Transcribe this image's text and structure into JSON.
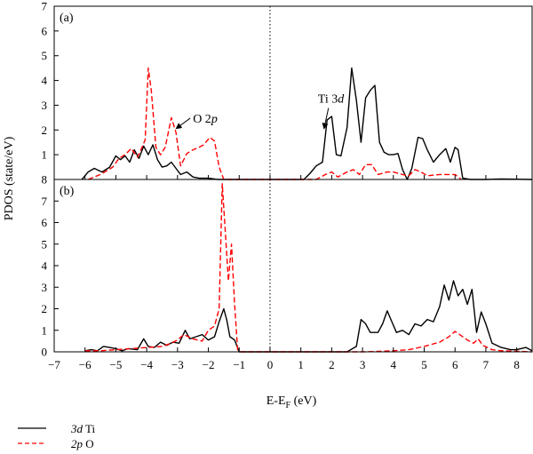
{
  "chart_data": {
    "type": "line",
    "ylabel": "PDOS (state/eV)",
    "xlabel": "E-E",
    "xlabel_sub": "F",
    "xlabel_unit": " (eV)",
    "xlim": [
      -7,
      8.5
    ],
    "xticks": [
      -7,
      -6,
      -5,
      -4,
      -3,
      -2,
      -1,
      0,
      1,
      2,
      3,
      4,
      5,
      6,
      7,
      8
    ],
    "xtick_labels": [
      "−7",
      "−6",
      "−5",
      "−4",
      "−3",
      "−2",
      "−1",
      "0",
      "1",
      "2",
      "3",
      "4",
      "5",
      "6",
      "7",
      "8"
    ],
    "fermi_level": 0,
    "legend": {
      "placement": "bottom-left, below plot",
      "entries": [
        {
          "series": "Ti 3d",
          "label_italic": "3d",
          "label_rest": " Ti",
          "color": "#000000",
          "style": "solid"
        },
        {
          "series": "O 2p",
          "label_italic": "2p",
          "label_rest": " O",
          "color": "#ff0000",
          "style": "dashed"
        }
      ]
    },
    "panels": [
      {
        "label": "(a)",
        "ylim": [
          0,
          7
        ],
        "yticks": [
          1,
          2,
          3,
          4,
          5,
          6,
          7
        ],
        "ytick_labels": [
          "1",
          "2",
          "3",
          "4",
          "5",
          "6",
          "7"
        ],
        "bottom_tick_label": "8",
        "annotations": [
          {
            "label": "O 2",
            "label_italic": "p",
            "text_at": [
              -2.5,
              2.3
            ],
            "arrow_to": [
              -3.05,
              2.05
            ]
          },
          {
            "label": "Ti 3",
            "label_italic": "d",
            "text_at": [
              1.55,
              3.1
            ],
            "arrow_to": [
              1.75,
              2.05
            ]
          }
        ],
        "series": [
          {
            "name": "Ti 3d",
            "color": "#000000",
            "style": "solid",
            "points": [
              [
                -6.1,
                0.0
              ],
              [
                -5.9,
                0.3
              ],
              [
                -5.7,
                0.45
              ],
              [
                -5.45,
                0.3
              ],
              [
                -5.2,
                0.5
              ],
              [
                -5.0,
                0.95
              ],
              [
                -4.85,
                0.8
              ],
              [
                -4.7,
                0.95
              ],
              [
                -4.55,
                0.7
              ],
              [
                -4.4,
                1.2
              ],
              [
                -4.25,
                0.85
              ],
              [
                -4.1,
                1.35
              ],
              [
                -3.95,
                1.0
              ],
              [
                -3.8,
                1.4
              ],
              [
                -3.65,
                0.8
              ],
              [
                -3.5,
                0.5
              ],
              [
                -3.35,
                0.55
              ],
              [
                -3.2,
                0.7
              ],
              [
                -3.05,
                0.45
              ],
              [
                -2.9,
                0.2
              ],
              [
                -2.7,
                0.3
              ],
              [
                -2.5,
                0.1
              ],
              [
                -2.3,
                0.05
              ],
              [
                -2.0,
                0.05
              ],
              [
                -1.7,
                0.0
              ],
              [
                1.1,
                0.0
              ],
              [
                1.3,
                0.25
              ],
              [
                1.5,
                0.55
              ],
              [
                1.7,
                0.7
              ],
              [
                1.85,
                2.4
              ],
              [
                2.0,
                2.55
              ],
              [
                2.15,
                1.0
              ],
              [
                2.3,
                0.95
              ],
              [
                2.5,
                2.1
              ],
              [
                2.65,
                4.5
              ],
              [
                2.8,
                3.2
              ],
              [
                2.95,
                1.5
              ],
              [
                3.1,
                3.3
              ],
              [
                3.25,
                3.6
              ],
              [
                3.4,
                3.8
              ],
              [
                3.55,
                1.5
              ],
              [
                3.7,
                1.1
              ],
              [
                3.85,
                1.0
              ],
              [
                4.0,
                1.0
              ],
              [
                4.15,
                1.05
              ],
              [
                4.3,
                0.4
              ],
              [
                4.45,
                0.0
              ],
              [
                4.6,
                0.45
              ],
              [
                4.8,
                1.7
              ],
              [
                4.95,
                1.65
              ],
              [
                5.1,
                1.2
              ],
              [
                5.3,
                0.7
              ],
              [
                5.5,
                1.0
              ],
              [
                5.7,
                1.25
              ],
              [
                5.85,
                0.7
              ],
              [
                6.0,
                1.3
              ],
              [
                6.1,
                1.2
              ],
              [
                6.25,
                0.05
              ],
              [
                6.5,
                0.0
              ],
              [
                7.0,
                0.0
              ],
              [
                7.5,
                0.02
              ],
              [
                8.5,
                0.0
              ]
            ]
          },
          {
            "name": "O 2p",
            "color": "#ff0000",
            "style": "dashed",
            "points": [
              [
                -5.9,
                0.0
              ],
              [
                -5.7,
                0.1
              ],
              [
                -5.5,
                0.2
              ],
              [
                -5.3,
                0.35
              ],
              [
                -5.1,
                0.5
              ],
              [
                -4.9,
                0.85
              ],
              [
                -4.7,
                1.0
              ],
              [
                -4.5,
                1.25
              ],
              [
                -4.3,
                0.9
              ],
              [
                -4.15,
                1.3
              ],
              [
                -4.05,
                1.6
              ],
              [
                -3.95,
                4.5
              ],
              [
                -3.85,
                3.6
              ],
              [
                -3.7,
                1.3
              ],
              [
                -3.55,
                1.0
              ],
              [
                -3.4,
                1.3
              ],
              [
                -3.2,
                2.5
              ],
              [
                -3.05,
                1.9
              ],
              [
                -2.9,
                0.55
              ],
              [
                -2.7,
                1.05
              ],
              [
                -2.5,
                1.2
              ],
              [
                -2.3,
                1.3
              ],
              [
                -2.15,
                1.4
              ],
              [
                -1.95,
                1.7
              ],
              [
                -1.8,
                1.55
              ],
              [
                -1.65,
                0.5
              ],
              [
                -1.5,
                0.0
              ],
              [
                1.5,
                0.0
              ],
              [
                1.8,
                0.2
              ],
              [
                2.0,
                0.3
              ],
              [
                2.2,
                0.1
              ],
              [
                2.5,
                0.3
              ],
              [
                2.7,
                0.4
              ],
              [
                2.9,
                0.2
              ],
              [
                3.1,
                0.6
              ],
              [
                3.3,
                0.6
              ],
              [
                3.5,
                0.2
              ],
              [
                3.8,
                0.3
              ],
              [
                4.0,
                0.3
              ],
              [
                4.3,
                0.2
              ],
              [
                4.5,
                0.15
              ],
              [
                4.7,
                0.4
              ],
              [
                4.9,
                0.3
              ],
              [
                5.1,
                0.15
              ],
              [
                5.5,
                0.2
              ],
              [
                6.0,
                0.2
              ],
              [
                6.2,
                0.0
              ]
            ]
          }
        ]
      },
      {
        "label": "(b)",
        "ylim": [
          0,
          8
        ],
        "yticks": [
          0,
          1,
          2,
          3,
          4,
          5,
          6,
          7
        ],
        "ytick_labels": [
          "0",
          "1",
          "2",
          "3",
          "4",
          "5",
          "6",
          "7"
        ],
        "series": [
          {
            "name": "Ti 3d",
            "color": "#000000",
            "style": "solid",
            "points": [
              [
                -6.0,
                0.05
              ],
              [
                -5.8,
                0.1
              ],
              [
                -5.6,
                0.05
              ],
              [
                -5.4,
                0.25
              ],
              [
                -5.2,
                0.2
              ],
              [
                -5.0,
                0.15
              ],
              [
                -4.8,
                0.05
              ],
              [
                -4.6,
                0.15
              ],
              [
                -4.3,
                0.1
              ],
              [
                -4.1,
                0.6
              ],
              [
                -3.95,
                0.25
              ],
              [
                -3.75,
                0.2
              ],
              [
                -3.55,
                0.45
              ],
              [
                -3.35,
                0.3
              ],
              [
                -3.15,
                0.45
              ],
              [
                -2.95,
                0.4
              ],
              [
                -2.75,
                1.0
              ],
              [
                -2.6,
                0.6
              ],
              [
                -2.4,
                0.7
              ],
              [
                -2.2,
                0.8
              ],
              [
                -2.0,
                0.55
              ],
              [
                -1.8,
                0.7
              ],
              [
                -1.65,
                1.4
              ],
              [
                -1.5,
                2.0
              ],
              [
                -1.4,
                1.45
              ],
              [
                -1.3,
                0.7
              ],
              [
                -1.15,
                0.55
              ],
              [
                -1.0,
                0.0
              ],
              [
                2.5,
                0.0
              ],
              [
                2.8,
                0.25
              ],
              [
                2.95,
                1.5
              ],
              [
                3.1,
                1.3
              ],
              [
                3.25,
                0.9
              ],
              [
                3.5,
                0.9
              ],
              [
                3.65,
                1.3
              ],
              [
                3.8,
                1.9
              ],
              [
                3.95,
                1.4
              ],
              [
                4.1,
                0.9
              ],
              [
                4.3,
                1.0
              ],
              [
                4.5,
                0.8
              ],
              [
                4.7,
                1.3
              ],
              [
                4.9,
                1.2
              ],
              [
                5.1,
                1.5
              ],
              [
                5.3,
                1.4
              ],
              [
                5.5,
                2.1
              ],
              [
                5.65,
                3.1
              ],
              [
                5.8,
                2.4
              ],
              [
                5.95,
                3.3
              ],
              [
                6.1,
                2.6
              ],
              [
                6.25,
                2.9
              ],
              [
                6.4,
                2.2
              ],
              [
                6.55,
                2.9
              ],
              [
                6.7,
                0.9
              ],
              [
                6.85,
                1.85
              ],
              [
                7.0,
                1.3
              ],
              [
                7.2,
                0.4
              ],
              [
                7.5,
                0.2
              ],
              [
                7.8,
                0.1
              ],
              [
                8.0,
                0.1
              ],
              [
                8.3,
                0.2
              ],
              [
                8.5,
                0.05
              ]
            ]
          },
          {
            "name": "O 2p",
            "color": "#ff0000",
            "style": "dashed",
            "points": [
              [
                -6.0,
                0.05
              ],
              [
                -5.5,
                0.05
              ],
              [
                -5.0,
                0.1
              ],
              [
                -4.5,
                0.15
              ],
              [
                -4.0,
                0.2
              ],
              [
                -3.5,
                0.25
              ],
              [
                -3.2,
                0.4
              ],
              [
                -3.0,
                0.55
              ],
              [
                -2.8,
                0.8
              ],
              [
                -2.5,
                0.6
              ],
              [
                -2.2,
                0.5
              ],
              [
                -2.0,
                1.0
              ],
              [
                -1.8,
                1.2
              ],
              [
                -1.65,
                2.0
              ],
              [
                -1.55,
                7.8
              ],
              [
                -1.45,
                5.6
              ],
              [
                -1.35,
                3.3
              ],
              [
                -1.25,
                5.0
              ],
              [
                -1.15,
                2.2
              ],
              [
                -1.05,
                0.1
              ],
              [
                -0.95,
                0.0
              ],
              [
                3.0,
                0.0
              ],
              [
                3.5,
                0.02
              ],
              [
                4.0,
                0.05
              ],
              [
                4.5,
                0.1
              ],
              [
                5.0,
                0.25
              ],
              [
                5.5,
                0.45
              ],
              [
                5.8,
                0.7
              ],
              [
                6.0,
                0.95
              ],
              [
                6.2,
                0.75
              ],
              [
                6.4,
                0.55
              ],
              [
                6.6,
                0.4
              ],
              [
                6.75,
                0.6
              ],
              [
                6.9,
                0.3
              ],
              [
                7.2,
                0.1
              ],
              [
                7.5,
                0.05
              ],
              [
                8.5,
                0.0
              ]
            ]
          }
        ]
      }
    ]
  }
}
